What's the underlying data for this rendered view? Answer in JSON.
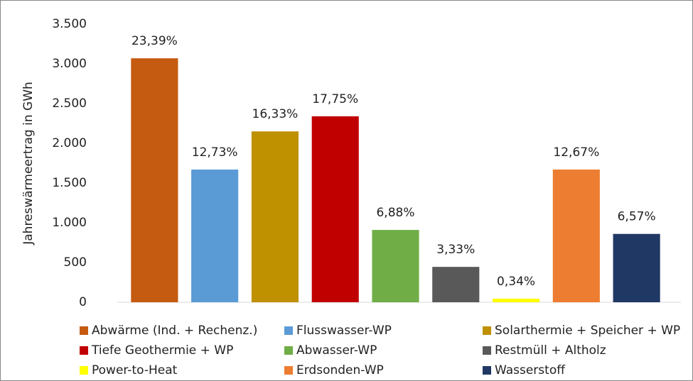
{
  "chart_data": {
    "type": "bar",
    "y_label": "Jahreswärmeertrag in GWh",
    "categories": [
      "Abwärme (Ind. + Rechenz.)",
      "Flusswasser-WP",
      "Solarthermie + Speicher + WP",
      "Tiefe Geothermie + WP",
      "Abwasser-WP",
      "Restmüll + Altholz",
      "Power-to-Heat",
      "Erdsonden-WP",
      "Wasserstoff"
    ],
    "values": [
      3070,
      1670,
      2150,
      2340,
      910,
      445,
      45,
      1670,
      860
    ],
    "annotations": [
      "23,39%",
      "12,73%",
      "16,33%",
      "17,75%",
      "6,88%",
      "3,33%",
      "0,34%",
      "12,67%",
      "6,57%"
    ],
    "colors": [
      "#c55a11",
      "#5b9bd5",
      "#bf9000",
      "#c00000",
      "#70ad47",
      "#595959",
      "#ffff00",
      "#ed7d31",
      "#203864"
    ],
    "ylim": [
      0,
      3500
    ],
    "yticks": [
      0,
      500,
      {
        "value": 1000,
        "label": "1.000"
      },
      {
        "value": 1500,
        "label": "1.500"
      },
      {
        "value": 2000,
        "label": "2.000"
      },
      {
        "value": 2500,
        "label": "2.500"
      },
      {
        "value": 3000,
        "label": "3.000"
      },
      {
        "value": 3500,
        "label": "3.500"
      }
    ],
    "grid": false,
    "legend_position": "bottom"
  }
}
